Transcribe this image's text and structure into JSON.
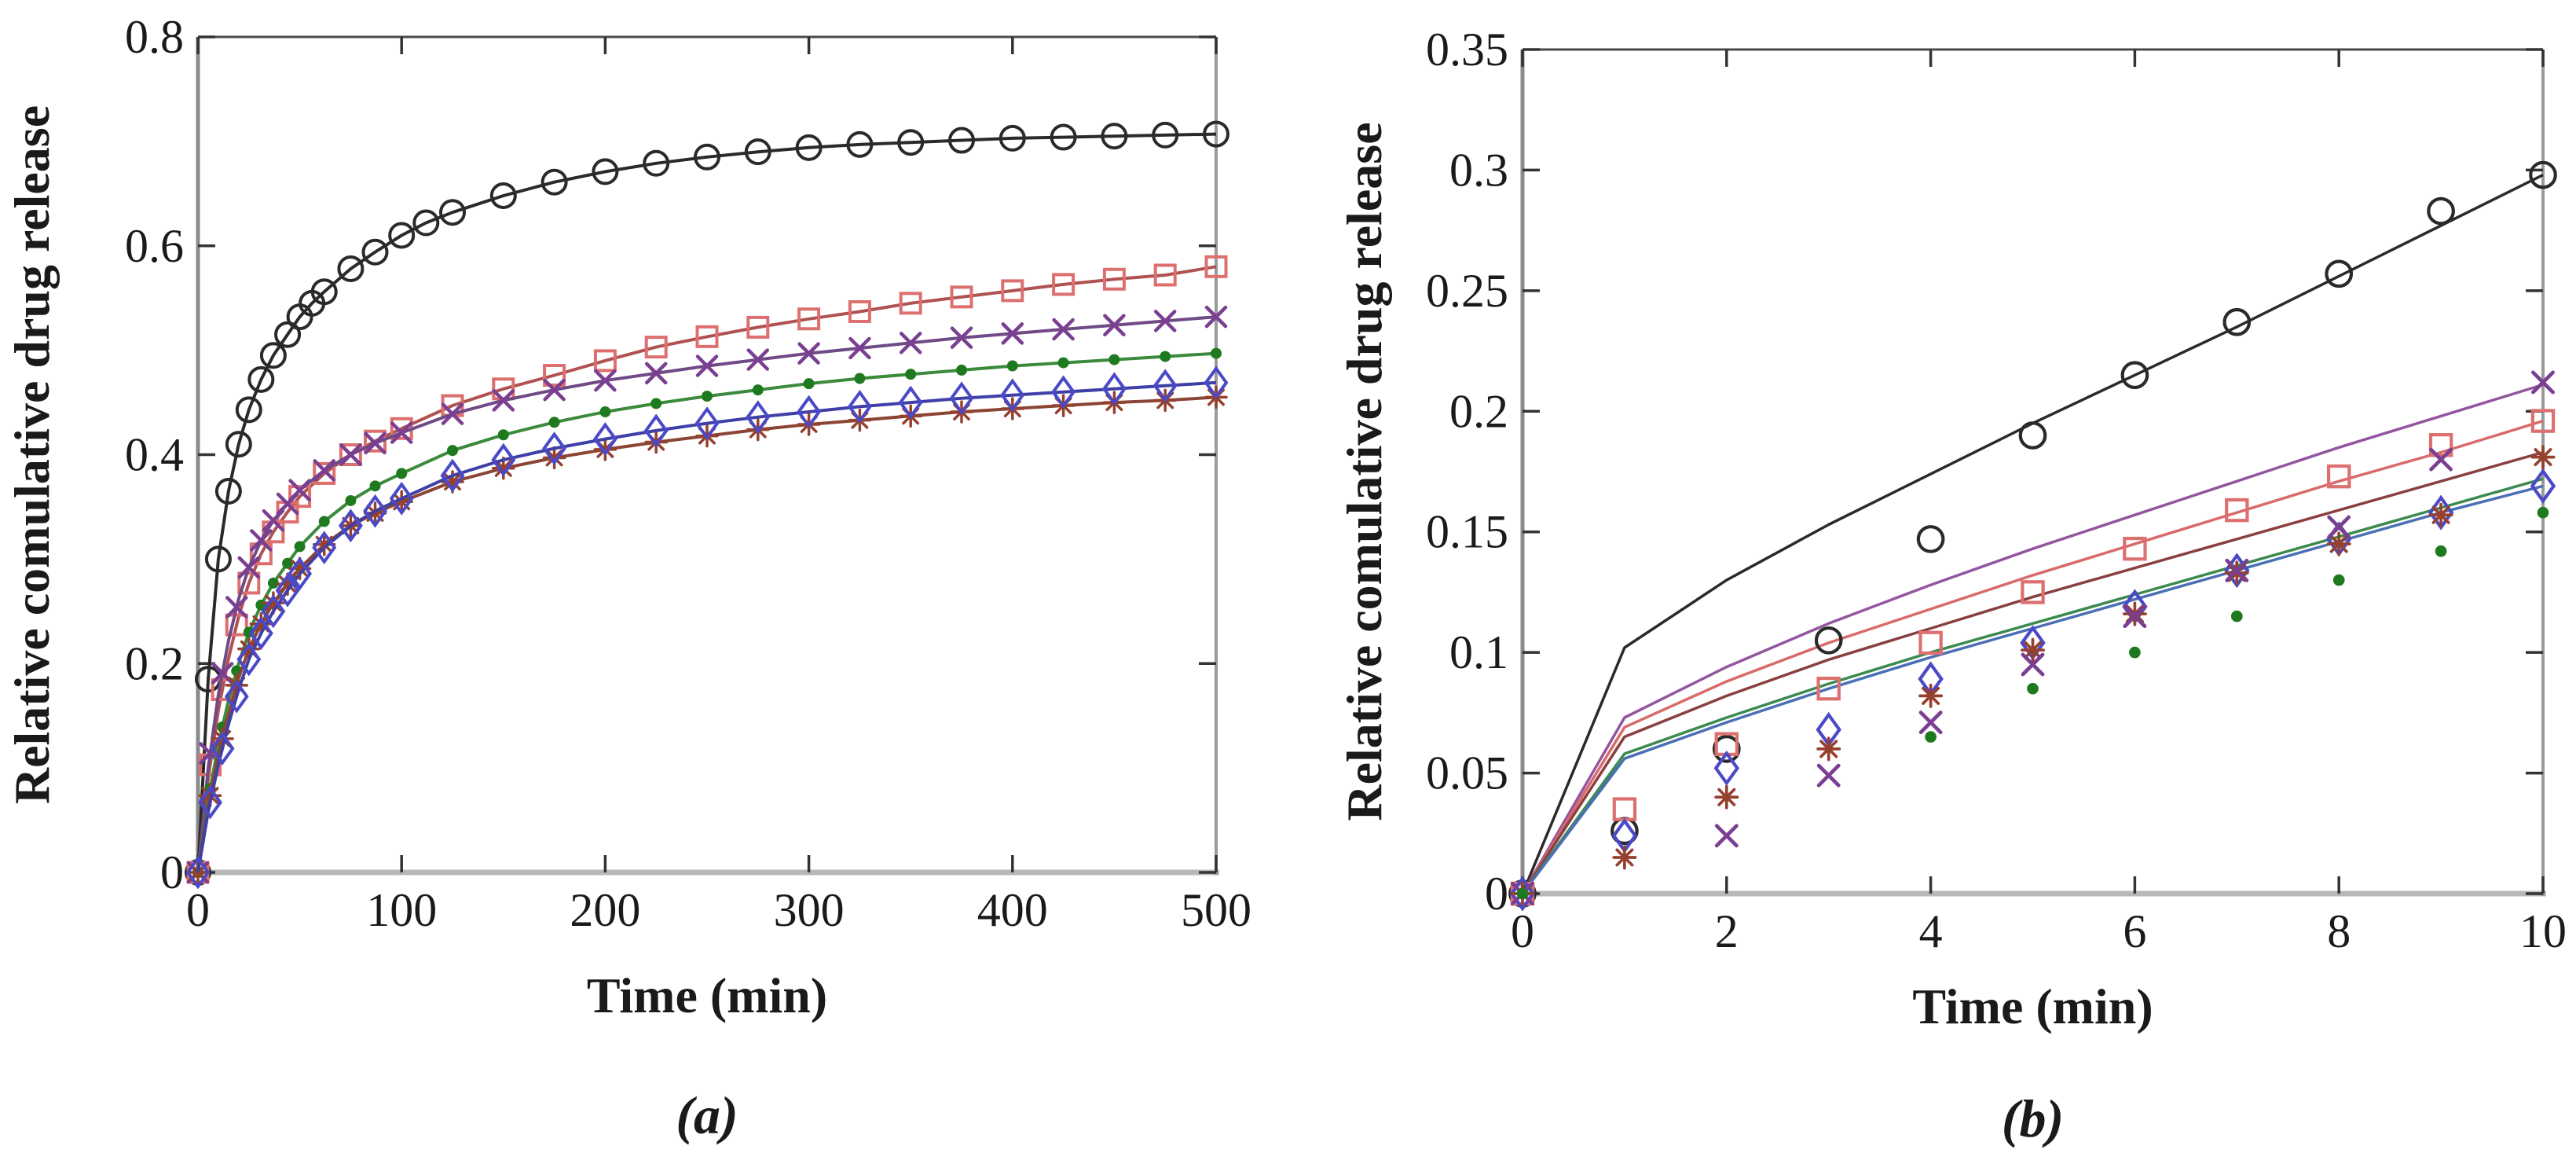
{
  "figure": {
    "background": "#ffffff",
    "ylabel": "Relative comulative drug release",
    "xlabel": "Time (min)"
  },
  "chart_data": [
    {
      "id": "a",
      "type": "line",
      "caption": "(a)",
      "xlabel": "Time (min)",
      "ylabel": "Relative comulative drug release",
      "xlim": [
        0,
        500
      ],
      "ylim": [
        0,
        0.8
      ],
      "xticks": [
        0,
        100,
        200,
        300,
        400,
        500
      ],
      "xtick_labels": [
        "0",
        "100",
        "200",
        "300",
        "400",
        "500"
      ],
      "yticks": [
        0,
        0.2,
        0.4,
        0.6,
        0.8
      ],
      "ytick_labels": [
        "0",
        "0.2",
        "0.4",
        "0.6",
        "0.8"
      ],
      "grid": false,
      "legend": "none",
      "marker_grid": [
        0,
        6,
        12,
        19,
        25,
        31,
        37,
        44,
        50,
        62,
        75,
        87,
        100,
        125,
        150,
        175,
        200,
        225,
        250,
        275,
        300,
        325,
        350,
        375,
        400,
        425,
        450,
        475,
        500
      ],
      "series": [
        {
          "name": "black-circle",
          "line_color": "#2a2a2a",
          "marker": "circle",
          "marker_color": "#2a2a2a",
          "x": [
            0,
            5,
            10,
            15,
            20,
            25,
            31,
            37,
            44,
            50,
            56,
            62,
            75,
            87,
            100,
            112,
            125,
            150,
            175,
            200,
            225,
            250,
            275,
            300,
            325,
            350,
            375,
            400,
            425,
            450,
            475,
            500
          ],
          "y": [
            0,
            0.185,
            0.3,
            0.365,
            0.41,
            0.443,
            0.472,
            0.495,
            0.515,
            0.532,
            0.545,
            0.556,
            0.578,
            0.594,
            0.61,
            0.622,
            0.632,
            0.648,
            0.661,
            0.671,
            0.679,
            0.685,
            0.69,
            0.694,
            0.697,
            0.699,
            0.701,
            0.703,
            0.704,
            0.705,
            0.706,
            0.707
          ],
          "markers_on_anchors": true
        },
        {
          "name": "red-square",
          "line_color": "#b05252",
          "marker": "square",
          "marker_color": "#dd6f6f",
          "x": [
            0,
            5,
            10,
            15,
            20,
            25,
            31,
            37,
            44,
            50,
            62,
            75,
            87,
            100,
            125,
            150,
            175,
            200,
            225,
            250,
            275,
            300,
            325,
            350,
            375,
            400,
            425,
            450,
            475,
            500
          ],
          "y": [
            0,
            0.09,
            0.155,
            0.205,
            0.245,
            0.277,
            0.305,
            0.326,
            0.345,
            0.36,
            0.382,
            0.4,
            0.413,
            0.425,
            0.447,
            0.463,
            0.476,
            0.49,
            0.503,
            0.513,
            0.522,
            0.53,
            0.537,
            0.545,
            0.551,
            0.557,
            0.563,
            0.568,
            0.572,
            0.58
          ],
          "markers_on_anchors": false
        },
        {
          "name": "purple-x",
          "line_color": "#6f4a86",
          "marker": "x",
          "marker_color": "#7b3f92",
          "x": [
            0,
            5,
            10,
            15,
            20,
            25,
            31,
            37,
            44,
            50,
            62,
            75,
            87,
            100,
            125,
            150,
            175,
            200,
            225,
            250,
            275,
            300,
            325,
            350,
            375,
            400,
            425,
            450,
            475,
            500
          ],
          "y": [
            0,
            0.1,
            0.17,
            0.222,
            0.262,
            0.292,
            0.318,
            0.337,
            0.353,
            0.366,
            0.385,
            0.4,
            0.411,
            0.421,
            0.439,
            0.452,
            0.462,
            0.471,
            0.478,
            0.485,
            0.491,
            0.497,
            0.502,
            0.507,
            0.512,
            0.516,
            0.52,
            0.524,
            0.528,
            0.532
          ],
          "markers_on_anchors": false
        },
        {
          "name": "green-dot",
          "line_color": "#3c8a3c",
          "marker": "dot",
          "marker_color": "#1f7a1f",
          "x": [
            0,
            5,
            10,
            15,
            20,
            25,
            31,
            37,
            44,
            50,
            62,
            75,
            87,
            100,
            125,
            150,
            175,
            200,
            225,
            250,
            275,
            300,
            325,
            350,
            375,
            400,
            425,
            450,
            475,
            500
          ],
          "y": [
            0,
            0.07,
            0.122,
            0.165,
            0.2,
            0.23,
            0.256,
            0.277,
            0.296,
            0.312,
            0.336,
            0.356,
            0.37,
            0.382,
            0.404,
            0.419,
            0.431,
            0.441,
            0.449,
            0.456,
            0.462,
            0.468,
            0.473,
            0.477,
            0.481,
            0.485,
            0.488,
            0.491,
            0.494,
            0.497
          ],
          "markers_on_anchors": false
        },
        {
          "name": "darkred-asterisk",
          "line_color": "#8a4535",
          "marker": "asterisk",
          "marker_color": "#96402e",
          "x": [
            0,
            5,
            10,
            15,
            20,
            25,
            31,
            37,
            44,
            50,
            62,
            75,
            87,
            100,
            125,
            150,
            175,
            200,
            225,
            250,
            275,
            300,
            325,
            350,
            375,
            400,
            425,
            450,
            475,
            500
          ],
          "y": [
            0,
            0.064,
            0.112,
            0.152,
            0.186,
            0.214,
            0.238,
            0.258,
            0.276,
            0.291,
            0.314,
            0.332,
            0.344,
            0.355,
            0.374,
            0.387,
            0.397,
            0.405,
            0.412,
            0.418,
            0.424,
            0.429,
            0.433,
            0.437,
            0.441,
            0.444,
            0.447,
            0.45,
            0.452,
            0.455
          ],
          "markers_on_anchors": false
        },
        {
          "name": "blue-diamond",
          "line_color": "#3f3fa8",
          "marker": "diamond",
          "marker_color": "#4a4ac8",
          "x": [
            0,
            5,
            10,
            15,
            20,
            25,
            31,
            37,
            44,
            50,
            62,
            75,
            87,
            100,
            125,
            150,
            175,
            200,
            225,
            250,
            275,
            300,
            325,
            350,
            375,
            400,
            425,
            450,
            475,
            500
          ],
          "y": [
            0,
            0.058,
            0.103,
            0.142,
            0.175,
            0.204,
            0.229,
            0.25,
            0.27,
            0.286,
            0.311,
            0.332,
            0.346,
            0.358,
            0.38,
            0.395,
            0.406,
            0.415,
            0.423,
            0.43,
            0.436,
            0.441,
            0.446,
            0.45,
            0.454,
            0.457,
            0.46,
            0.463,
            0.466,
            0.469
          ],
          "markers_on_anchors": false
        }
      ]
    },
    {
      "id": "b",
      "type": "line",
      "caption": "(b)",
      "xlabel": "Time (min)",
      "ylabel": "Relative comulative drug release",
      "xlim": [
        0,
        10
      ],
      "ylim": [
        0,
        0.35
      ],
      "xticks": [
        0,
        2,
        4,
        6,
        8,
        10
      ],
      "xtick_labels": [
        "0",
        "2",
        "4",
        "6",
        "8",
        "10"
      ],
      "yticks": [
        0,
        0.05,
        0.1,
        0.15,
        0.2,
        0.25,
        0.3,
        0.35
      ],
      "ytick_labels": [
        "0",
        "0.05",
        "0.1",
        "0.15",
        "0.2",
        "0.25",
        "0.3",
        "0.35"
      ],
      "grid": false,
      "legend": "none",
      "series": [
        {
          "name": "black-model-line",
          "line_color": "#2a2a2a",
          "marker": "none",
          "x": [
            0,
            1,
            2,
            3,
            4,
            5,
            6,
            7,
            8,
            9,
            10
          ],
          "y": [
            0,
            0.102,
            0.13,
            0.153,
            0.174,
            0.195,
            0.215,
            0.235,
            0.256,
            0.277,
            0.298
          ]
        },
        {
          "name": "purple-model-line",
          "line_color": "#9455a0",
          "marker": "none",
          "x": [
            0,
            1,
            2,
            3,
            4,
            5,
            6,
            7,
            8,
            9,
            10
          ],
          "y": [
            0,
            0.073,
            0.094,
            0.112,
            0.128,
            0.143,
            0.157,
            0.171,
            0.185,
            0.198,
            0.211
          ]
        },
        {
          "name": "red-model-line",
          "line_color": "#d96a6a",
          "marker": "none",
          "x": [
            0,
            1,
            2,
            3,
            4,
            5,
            6,
            7,
            8,
            9,
            10
          ],
          "y": [
            0,
            0.069,
            0.088,
            0.104,
            0.118,
            0.132,
            0.145,
            0.158,
            0.171,
            0.183,
            0.196
          ]
        },
        {
          "name": "darkred-model-line",
          "line_color": "#8a4040",
          "marker": "none",
          "x": [
            0,
            1,
            2,
            3,
            4,
            5,
            6,
            7,
            8,
            9,
            10
          ],
          "y": [
            0,
            0.065,
            0.082,
            0.097,
            0.11,
            0.123,
            0.135,
            0.147,
            0.159,
            0.171,
            0.183
          ]
        },
        {
          "name": "green-model-line",
          "line_color": "#3d8a50",
          "marker": "none",
          "x": [
            0,
            1,
            2,
            3,
            4,
            5,
            6,
            7,
            8,
            9,
            10
          ],
          "y": [
            0,
            0.058,
            0.073,
            0.087,
            0.1,
            0.112,
            0.124,
            0.136,
            0.148,
            0.16,
            0.172
          ]
        },
        {
          "name": "blue-model-line",
          "line_color": "#4a6fb5",
          "marker": "none",
          "x": [
            0,
            1,
            2,
            3,
            4,
            5,
            6,
            7,
            8,
            9,
            10
          ],
          "y": [
            0,
            0.056,
            0.071,
            0.085,
            0.098,
            0.11,
            0.122,
            0.134,
            0.146,
            0.158,
            0.169
          ]
        },
        {
          "name": "black-circle-data",
          "line_color": "none",
          "marker": "circle",
          "marker_color": "#2a2a2a",
          "x": [
            0,
            1,
            2,
            3,
            4,
            5,
            6,
            7,
            8,
            9,
            10
          ],
          "y": [
            0,
            0.026,
            0.06,
            0.105,
            0.147,
            0.19,
            0.215,
            0.237,
            0.257,
            0.283,
            0.298
          ]
        },
        {
          "name": "red-square-data",
          "line_color": "none",
          "marker": "square",
          "marker_color": "#dd6f6f",
          "x": [
            0,
            1,
            2,
            3,
            4,
            5,
            6,
            7,
            8,
            9,
            10
          ],
          "y": [
            0,
            0.035,
            0.062,
            0.085,
            0.104,
            0.125,
            0.143,
            0.159,
            0.173,
            0.186,
            0.196
          ]
        },
        {
          "name": "blue-diamond-data",
          "line_color": "none",
          "marker": "diamond",
          "marker_color": "#4a4ac8",
          "x": [
            0,
            1,
            2,
            3,
            4,
            5,
            6,
            7,
            8,
            9,
            10
          ],
          "y": [
            0,
            0.024,
            0.052,
            0.068,
            0.089,
            0.104,
            0.119,
            0.134,
            0.147,
            0.158,
            0.169
          ]
        },
        {
          "name": "darkred-asterisk-data",
          "line_color": "none",
          "marker": "asterisk",
          "marker_color": "#96402e",
          "x": [
            0,
            1,
            2,
            3,
            4,
            5,
            6,
            7,
            8,
            9,
            10
          ],
          "y": [
            0,
            0.015,
            0.04,
            0.06,
            0.082,
            0.101,
            0.116,
            0.133,
            0.145,
            0.157,
            0.181
          ]
        },
        {
          "name": "purple-x-data",
          "line_color": "none",
          "marker": "x",
          "marker_color": "#7b3f92",
          "x": [
            0,
            2,
            3,
            4,
            5,
            6,
            7,
            8,
            9,
            10
          ],
          "y": [
            0,
            0.024,
            0.049,
            0.071,
            0.095,
            0.115,
            0.134,
            0.152,
            0.18,
            0.212
          ]
        },
        {
          "name": "green-dot-data",
          "line_color": "none",
          "marker": "dot",
          "marker_color": "#1f7a1f",
          "x": [
            0,
            4,
            5,
            6,
            7,
            8,
            9,
            10
          ],
          "y": [
            0,
            0.065,
            0.085,
            0.1,
            0.115,
            0.13,
            0.142,
            0.158
          ]
        }
      ]
    }
  ]
}
